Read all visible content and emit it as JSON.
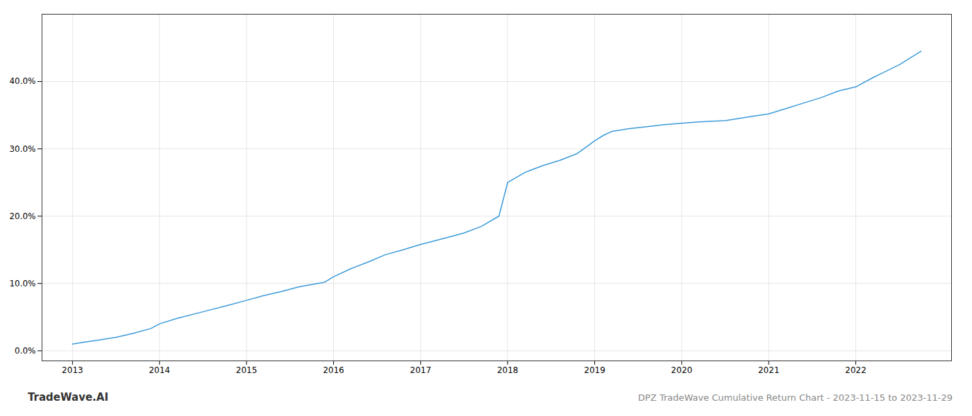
{
  "chart_data": {
    "type": "line",
    "x": [
      2013.0,
      2013.15,
      2013.3,
      2013.5,
      2013.7,
      2013.9,
      2014.0,
      2014.2,
      2014.5,
      2014.8,
      2015.0,
      2015.2,
      2015.4,
      2015.6,
      2015.9,
      2016.0,
      2016.2,
      2016.4,
      2016.6,
      2016.8,
      2017.0,
      2017.15,
      2017.3,
      2017.5,
      2017.7,
      2017.9,
      2018.0,
      2018.2,
      2018.4,
      2018.6,
      2018.8,
      2019.0,
      2019.1,
      2019.2,
      2019.4,
      2019.6,
      2019.8,
      2020.0,
      2020.2,
      2020.5,
      2020.8,
      2021.0,
      2021.2,
      2021.4,
      2021.6,
      2021.8,
      2022.0,
      2022.2,
      2022.5,
      2022.75
    ],
    "values": [
      0.01,
      0.013,
      0.016,
      0.02,
      0.026,
      0.033,
      0.04,
      0.048,
      0.058,
      0.068,
      0.075,
      0.082,
      0.088,
      0.095,
      0.102,
      0.11,
      0.122,
      0.132,
      0.143,
      0.15,
      0.158,
      0.163,
      0.168,
      0.175,
      0.185,
      0.2,
      0.25,
      0.265,
      0.275,
      0.283,
      0.293,
      0.312,
      0.32,
      0.326,
      0.33,
      0.333,
      0.336,
      0.338,
      0.34,
      0.342,
      0.348,
      0.352,
      0.36,
      0.368,
      0.376,
      0.386,
      0.392,
      0.406,
      0.425,
      0.445
    ],
    "color": "#3a9ad9",
    "xlim": [
      2012.65,
      2023.1
    ],
    "xticks": [
      2013,
      2014,
      2015,
      2016,
      2017,
      2018,
      2019,
      2020,
      2021,
      2022
    ],
    "ylim": [
      -0.015,
      0.5
    ],
    "yticks": [
      {
        "value": 0.0,
        "label": "0.0%"
      },
      {
        "value": 0.1,
        "label": "10.0%"
      },
      {
        "value": 0.2,
        "label": "20.0%"
      },
      {
        "value": 0.3,
        "label": "30.0%"
      },
      {
        "value": 0.4,
        "label": "40.0%"
      }
    ],
    "grid": true,
    "annotations": [
      "TradeWave.AI",
      "DPZ TradeWave Cumulative Return Chart - 2023-11-15 to 2023-11-29"
    ]
  }
}
